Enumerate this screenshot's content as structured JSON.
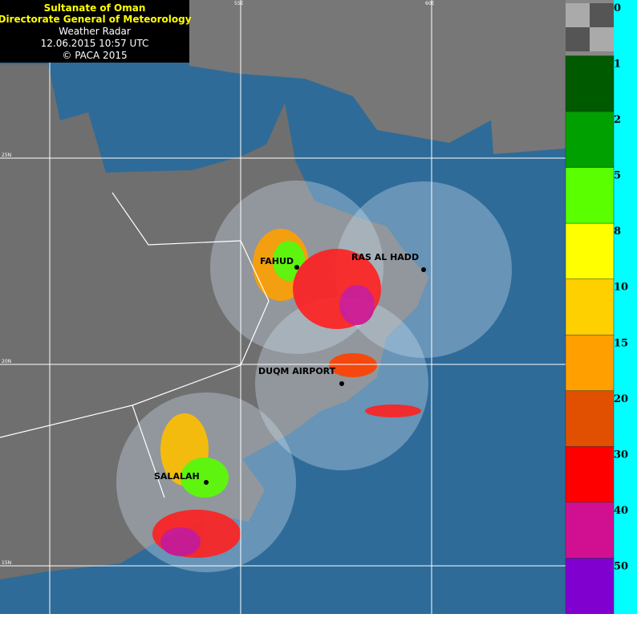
{
  "header": {
    "lines": [
      "Sultanate of Oman",
      "Directorate General of Meteorology",
      "Weather Radar",
      "12.06.2015 10:57 UTC",
      "© PACA 2015"
    ]
  },
  "stations": [
    {
      "label": "FAHUD"
    },
    {
      "label": "RAS AL HADD"
    },
    {
      "label": "DUQM AIRPORT"
    },
    {
      "label": "SALALAH"
    }
  ],
  "grid_labels": {
    "lat": [
      "25N",
      "20N",
      "15N"
    ],
    "lon": [
      "55E",
      "60E"
    ]
  },
  "legend": {
    "levels": [
      {
        "label": "0",
        "color": "#808080"
      },
      {
        "label": "1",
        "color": "#005a00"
      },
      {
        "label": "2",
        "color": "#00a000"
      },
      {
        "label": "5",
        "color": "#5aff00"
      },
      {
        "label": "8",
        "color": "#ffff00"
      },
      {
        "label": "10",
        "color": "#ffd000"
      },
      {
        "label": "15",
        "color": "#ffa000"
      },
      {
        "label": "20",
        "color": "#e05000"
      },
      {
        "label": "30",
        "color": "#ff0000"
      },
      {
        "label": "40",
        "color": "#d01090"
      },
      {
        "label": "50",
        "color": "#8000d0"
      }
    ]
  }
}
